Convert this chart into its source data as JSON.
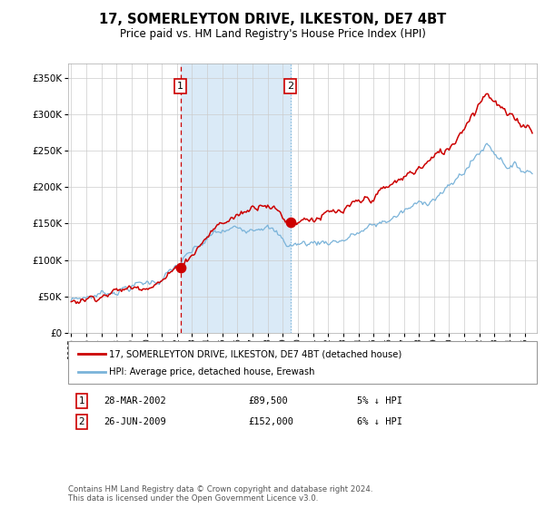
{
  "title": "17, SOMERLEYTON DRIVE, ILKESTON, DE7 4BT",
  "subtitle": "Price paid vs. HM Land Registry's House Price Index (HPI)",
  "ylim": [
    0,
    370000
  ],
  "yticks": [
    0,
    50000,
    100000,
    150000,
    200000,
    250000,
    300000,
    350000
  ],
  "ytick_labels": [
    "£0",
    "£50K",
    "£100K",
    "£150K",
    "£200K",
    "£250K",
    "£300K",
    "£350K"
  ],
  "x_start_year": 1995.0,
  "x_end_year": 2025.5,
  "transaction1": {
    "date_num": 2002.23,
    "price": 89500
  },
  "transaction2": {
    "date_num": 2009.49,
    "price": 152000
  },
  "hpi_color": "#7ab3d9",
  "price_color": "#cc0000",
  "shade_color": "#daeaf7",
  "vline1_color": "#cc0000",
  "vline2_color": "#7ab3d9",
  "background_color": "#ffffff",
  "grid_color": "#cccccc",
  "legend1_label": "17, SOMERLEYTON DRIVE, ILKESTON, DE7 4BT (detached house)",
  "legend2_label": "HPI: Average price, detached house, Erewash",
  "table_data": [
    {
      "num": "1",
      "date": "28-MAR-2002",
      "price": "£89,500",
      "hpi": "5% ↓ HPI"
    },
    {
      "num": "2",
      "date": "26-JUN-2009",
      "price": "£152,000",
      "hpi": "6% ↓ HPI"
    }
  ],
  "footnote1": "Contains HM Land Registry data © Crown copyright and database right 2024.",
  "footnote2": "This data is licensed under the Open Government Licence v3.0."
}
